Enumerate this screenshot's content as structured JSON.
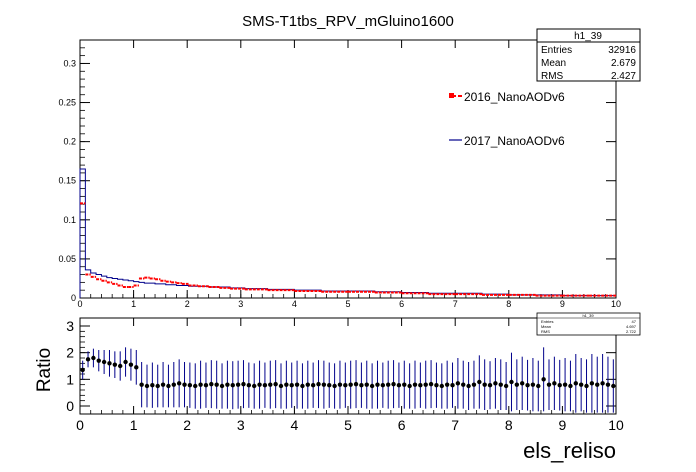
{
  "chart_data": [
    {
      "type": "line",
      "title": "SMS-T1tbs_RPV_mGluino1600",
      "xlim": [
        0,
        10
      ],
      "ylim": [
        0,
        0.33
      ],
      "yticks": [
        "0",
        "0.05",
        "0.1",
        "0.15",
        "0.2",
        "0.25",
        "0.3"
      ],
      "xticks": [
        "0",
        "1",
        "2",
        "3",
        "4",
        "5",
        "6",
        "7",
        "8",
        "9",
        "10"
      ],
      "stats": {
        "name": "h1_39",
        "rows": [
          {
            "label": "Entries",
            "value": "32916"
          },
          {
            "label": "Mean",
            "value": "2.679"
          },
          {
            "label": "RMS",
            "value": "2.427"
          }
        ]
      },
      "legend": {
        "entries": [
          "2016_NanoAODv6",
          "2017_NanoAODv6"
        ]
      },
      "series": [
        {
          "name": "2016_NanoAODv6",
          "color": "#ff0000",
          "style": "markers",
          "x": [
            0.05,
            0.15,
            0.25,
            0.35,
            0.45,
            0.55,
            0.65,
            0.75,
            0.85,
            0.95,
            1.05,
            1.15,
            1.25,
            1.35,
            1.45,
            1.55,
            1.65,
            1.75,
            1.85,
            1.95,
            2.1,
            2.3,
            2.5,
            2.7,
            2.9,
            3.25,
            3.75,
            4.25,
            4.75,
            5.25,
            5.75,
            6.25,
            6.75,
            7.25,
            7.75,
            8.25,
            8.75,
            9.25,
            9.75
          ],
          "y": [
            0.121,
            0.03,
            0.027,
            0.024,
            0.022,
            0.02,
            0.018,
            0.016,
            0.014,
            0.014,
            0.016,
            0.025,
            0.026,
            0.025,
            0.024,
            0.022,
            0.021,
            0.02,
            0.019,
            0.018,
            0.016,
            0.015,
            0.014,
            0.013,
            0.012,
            0.011,
            0.01,
            0.009,
            0.008,
            0.008,
            0.007,
            0.006,
            0.005,
            0.005,
            0.004,
            0.004,
            0.003,
            0.003,
            0.003
          ]
        },
        {
          "name": "2017_NanoAODv6",
          "color": "#00008b",
          "style": "step",
          "x": [
            0.05,
            0.15,
            0.25,
            0.35,
            0.45,
            0.55,
            0.65,
            0.75,
            0.85,
            0.95,
            1.05,
            1.15,
            1.25,
            1.35,
            1.45,
            1.55,
            1.65,
            1.75,
            1.85,
            1.95,
            2.1,
            2.3,
            2.5,
            2.7,
            2.9,
            3.25,
            3.75,
            4.25,
            4.75,
            5.25,
            5.75,
            6.25,
            6.75,
            7.25,
            7.75,
            8.25,
            8.75,
            9.25,
            9.75
          ],
          "y": [
            0.165,
            0.036,
            0.032,
            0.03,
            0.028,
            0.026,
            0.025,
            0.024,
            0.023,
            0.022,
            0.021,
            0.02,
            0.019,
            0.019,
            0.018,
            0.018,
            0.017,
            0.017,
            0.016,
            0.016,
            0.015,
            0.015,
            0.014,
            0.014,
            0.013,
            0.012,
            0.011,
            0.01,
            0.009,
            0.009,
            0.008,
            0.007,
            0.006,
            0.006,
            0.005,
            0.004,
            0.004,
            0.003,
            0.003
          ]
        }
      ]
    },
    {
      "type": "scatter",
      "xlabel": "els_reliso",
      "ylabel": "Ratio",
      "xlim": [
        0,
        10
      ],
      "ylim": [
        -0.3,
        3.3
      ],
      "yticks": [
        "0",
        "1",
        "2",
        "3"
      ],
      "xticks": [
        "0",
        "1",
        "2",
        "3",
        "4",
        "5",
        "6",
        "7",
        "8",
        "9",
        "10"
      ],
      "stats": {
        "name": "h1_39",
        "rows": [
          {
            "label": "Entries",
            "value": "47"
          },
          {
            "label": "Mean",
            "value": "4.697"
          },
          {
            "label": "RMS",
            "value": "2.722"
          }
        ]
      },
      "series": [
        {
          "name": "",
          "color": "#000000",
          "error_color": "#00008b",
          "x": [
            0.05,
            0.15,
            0.25,
            0.35,
            0.45,
            0.55,
            0.65,
            0.75,
            0.85,
            0.95,
            1.05,
            1.15,
            1.25,
            1.35,
            1.45,
            1.55,
            1.65,
            1.75,
            1.85,
            1.95,
            2.05,
            2.15,
            2.25,
            2.35,
            2.45,
            2.55,
            2.65,
            2.75,
            2.85,
            2.95,
            3.05,
            3.15,
            3.25,
            3.35,
            3.45,
            3.55,
            3.65,
            3.75,
            3.85,
            3.95,
            4.05,
            4.15,
            4.25,
            4.35,
            4.45,
            4.55,
            4.65,
            4.75,
            4.85,
            4.95,
            5.05,
            5.15,
            5.25,
            5.35,
            5.45,
            5.55,
            5.65,
            5.75,
            5.85,
            5.95,
            6.05,
            6.15,
            6.25,
            6.35,
            6.45,
            6.55,
            6.65,
            6.75,
            6.85,
            6.95,
            7.05,
            7.15,
            7.25,
            7.35,
            7.45,
            7.55,
            7.65,
            7.75,
            7.85,
            7.95,
            8.05,
            8.15,
            8.25,
            8.35,
            8.45,
            8.55,
            8.65,
            8.75,
            8.85,
            8.95,
            9.05,
            9.15,
            9.25,
            9.35,
            9.45,
            9.55,
            9.65,
            9.75,
            9.85,
            9.95
          ],
          "y": [
            1.35,
            1.75,
            1.8,
            1.7,
            1.65,
            1.6,
            1.55,
            1.5,
            1.65,
            1.55,
            1.45,
            0.8,
            0.75,
            0.78,
            0.75,
            0.8,
            0.75,
            0.8,
            0.85,
            0.8,
            0.78,
            0.75,
            0.8,
            0.78,
            0.82,
            0.8,
            0.75,
            0.8,
            0.78,
            0.8,
            0.82,
            0.78,
            0.75,
            0.8,
            0.78,
            0.8,
            0.82,
            0.75,
            0.8,
            0.78,
            0.8,
            0.75,
            0.8,
            0.78,
            0.82,
            0.8,
            0.78,
            0.75,
            0.8,
            0.78,
            0.8,
            0.82,
            0.78,
            0.8,
            0.75,
            0.8,
            0.78,
            0.8,
            0.82,
            0.78,
            0.8,
            0.75,
            0.8,
            0.78,
            0.8,
            0.82,
            0.78,
            0.75,
            0.8,
            0.78,
            0.85,
            0.8,
            0.75,
            0.8,
            0.9,
            0.8,
            0.78,
            0.85,
            0.8,
            0.75,
            0.9,
            0.8,
            0.85,
            0.78,
            0.8,
            0.75,
            1.0,
            0.8,
            0.85,
            0.78,
            0.8,
            0.75,
            0.85,
            0.8,
            0.75,
            0.85,
            0.8,
            0.85,
            0.8,
            0.75
          ],
          "err": [
            0.35,
            0.3,
            0.35,
            0.4,
            0.45,
            0.5,
            0.5,
            0.55,
            0.55,
            0.6,
            0.65,
            0.85,
            0.8,
            0.85,
            0.8,
            0.85,
            0.8,
            0.85,
            0.9,
            0.85,
            0.85,
            0.85,
            0.9,
            0.85,
            0.9,
            0.9,
            0.85,
            0.9,
            0.9,
            0.9,
            0.9,
            0.85,
            0.85,
            0.9,
            0.85,
            0.9,
            0.9,
            0.85,
            0.9,
            0.85,
            0.9,
            0.85,
            0.9,
            0.85,
            0.9,
            0.9,
            0.85,
            0.85,
            0.9,
            0.85,
            0.9,
            0.9,
            0.85,
            0.9,
            0.85,
            0.9,
            0.85,
            0.9,
            0.9,
            0.85,
            0.9,
            0.85,
            0.9,
            0.85,
            0.9,
            0.9,
            0.85,
            0.85,
            0.9,
            0.85,
            0.95,
            0.9,
            0.9,
            0.9,
            1.0,
            0.95,
            0.9,
            0.95,
            0.95,
            0.9,
            1.1,
            0.95,
            1.0,
            0.95,
            1.0,
            0.95,
            1.2,
            0.95,
            1.0,
            0.95,
            1.0,
            0.95,
            1.1,
            1.0,
            1.0,
            1.1,
            1.05,
            1.1,
            1.05,
            1.0
          ]
        }
      ]
    }
  ]
}
